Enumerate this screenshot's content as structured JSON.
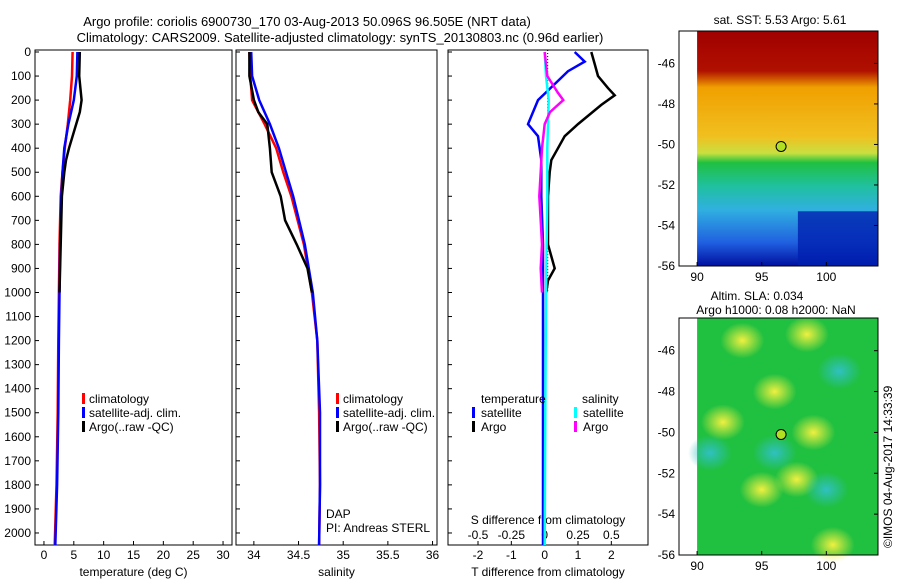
{
  "title_line1": "Argo profile: coriolis 6900730_170 03-Aug-2013 50.096S 96.505E (NRT data)",
  "title_line2": "Climatology: CARS2009. Satellite-adjusted climatology: synTS_20130803.nc (0.96d earlier)",
  "credit_line1": "DAP",
  "credit_line2": "PI: Andreas STERL",
  "copyright": "©IMOS 04-Aug-2017 14:33:39",
  "chart_data": [
    {
      "type": "line",
      "id": "temperature",
      "xlabel": "temperature (deg C)",
      "xlim": [
        -1.5,
        31.5
      ],
      "ylim": [
        0,
        2050
      ],
      "xticks": [
        0,
        5,
        10,
        15,
        20,
        25,
        30
      ],
      "yticks": [
        0,
        100,
        200,
        300,
        400,
        500,
        600,
        700,
        800,
        900,
        1000,
        1100,
        1200,
        1300,
        1400,
        1500,
        1600,
        1700,
        1800,
        1900,
        2000
      ],
      "legend": [
        "climatology",
        "satellite-adj. clim.",
        "Argo(..raw -QC)"
      ],
      "series": [
        {
          "name": "climatology",
          "color": "#ff0000",
          "depth": [
            0,
            100,
            200,
            300,
            400,
            500,
            600,
            800,
            1000,
            1200,
            1500,
            1800,
            2050
          ],
          "values": [
            4.8,
            4.7,
            4.4,
            4.0,
            3.5,
            3.1,
            2.8,
            2.6,
            2.5,
            2.4,
            2.3,
            2.1,
            1.8
          ]
        },
        {
          "name": "satellite-adj. clim.",
          "color": "#0000ff",
          "depth": [
            0,
            100,
            200,
            300,
            400,
            500,
            600,
            800,
            1000,
            1200,
            1500,
            1800,
            2050
          ],
          "values": [
            5.6,
            5.5,
            5.0,
            4.1,
            3.4,
            3.1,
            2.9,
            2.7,
            2.6,
            2.5,
            2.4,
            2.2,
            1.9
          ]
        },
        {
          "name": "Argo(..raw -QC)",
          "color": "#000000",
          "depth": [
            0,
            100,
            150,
            200,
            250,
            300,
            350,
            400,
            450,
            500,
            600,
            700,
            800,
            900,
            1000
          ],
          "values": [
            6.0,
            5.9,
            6.1,
            6.3,
            6.0,
            5.4,
            4.8,
            4.2,
            3.7,
            3.4,
            3.0,
            2.9,
            2.8,
            2.7,
            2.6
          ]
        }
      ]
    },
    {
      "type": "line",
      "id": "salinity",
      "xlabel": "salinity",
      "xlim": [
        33.8,
        36.05
      ],
      "ylim": [
        0,
        2050
      ],
      "xticks": [
        34,
        34.5,
        35,
        35.5,
        36
      ],
      "legend": [
        "climatology",
        "satellite-adj. clim.",
        "Argo(..raw -QC)"
      ],
      "series": [
        {
          "name": "climatology",
          "color": "#ff0000",
          "depth": [
            0,
            100,
            200,
            300,
            400,
            500,
            600,
            800,
            1000,
            1200,
            1500,
            1800,
            2050
          ],
          "values": [
            33.95,
            33.96,
            33.98,
            34.12,
            34.25,
            34.33,
            34.42,
            34.56,
            34.65,
            34.71,
            34.73,
            34.74,
            34.73
          ]
        },
        {
          "name": "satellite-adj. clim.",
          "color": "#0000ff",
          "depth": [
            0,
            100,
            200,
            300,
            400,
            500,
            600,
            800,
            1000,
            1200,
            1500,
            1800,
            2050
          ],
          "values": [
            33.97,
            33.98,
            34.06,
            34.18,
            34.28,
            34.36,
            34.44,
            34.57,
            34.66,
            34.71,
            34.74,
            34.74,
            34.73
          ]
        },
        {
          "name": "Argo(..raw -QC)",
          "color": "#000000",
          "depth": [
            0,
            100,
            200,
            250,
            300,
            400,
            500,
            600,
            700,
            800,
            900,
            1000
          ],
          "values": [
            33.95,
            33.95,
            34.0,
            34.05,
            34.15,
            34.18,
            34.2,
            34.3,
            34.35,
            34.48,
            34.6,
            34.65
          ]
        }
      ]
    },
    {
      "type": "line",
      "id": "difference",
      "xlabel": "T difference from climatology",
      "top_label": "S difference from climatology",
      "xlim": [
        -2.9,
        3.1
      ],
      "ylim": [
        0,
        2050
      ],
      "xticks": [
        -2,
        -1,
        0,
        1,
        2
      ],
      "top_ticks": [
        "-0.5",
        "-0.25",
        "0",
        "0.25",
        "0.5"
      ],
      "s_scale": 4,
      "legend_titles": [
        "temperature",
        "salinity"
      ],
      "legend": [
        "satellite",
        "Argo",
        "satellite",
        "Argo"
      ],
      "series": [
        {
          "name": "T satellite",
          "color": "#0000ff",
          "var": "T",
          "depth": [
            0,
            40,
            80,
            120,
            200,
            300,
            350,
            450,
            600,
            800,
            1000,
            1500,
            2050
          ],
          "values": [
            0.9,
            1.2,
            0.7,
            0.4,
            -0.2,
            -0.5,
            -0.2,
            -0.1,
            -0.1,
            -0.05,
            -0.05,
            -0.05,
            -0.05
          ]
        },
        {
          "name": "T Argo",
          "color": "#000000",
          "var": "T",
          "depth": [
            0,
            50,
            100,
            150,
            180,
            220,
            300,
            350,
            400,
            450,
            500,
            600,
            700,
            800,
            900,
            950,
            1000
          ],
          "values": [
            1.4,
            1.5,
            1.6,
            1.9,
            2.1,
            1.7,
            1.0,
            0.6,
            0.4,
            0.2,
            0.15,
            0.1,
            0.1,
            0.1,
            0.3,
            0.1,
            0.05
          ]
        },
        {
          "name": "S satellite",
          "color": "#00ffff",
          "var": "S",
          "depth": [
            0,
            100,
            200,
            400,
            600,
            1000,
            1500,
            2050
          ],
          "values": [
            0.0,
            0.01,
            0.03,
            0.02,
            0.02,
            0.01,
            0.005,
            0.0
          ]
        },
        {
          "name": "S Argo",
          "color": "#ff00ff",
          "var": "S",
          "depth": [
            0,
            100,
            170,
            200,
            250,
            300,
            400,
            500,
            600,
            700,
            800,
            900,
            1000
          ],
          "values": [
            0.0,
            0.02,
            0.1,
            0.14,
            0.04,
            0.0,
            -0.02,
            -0.03,
            -0.04,
            -0.03,
            -0.02,
            -0.03,
            -0.02
          ]
        }
      ]
    },
    {
      "type": "heatmap",
      "id": "sst_map",
      "title": "sat. SST: 5.53 Argo: 5.61",
      "xticks": [
        90,
        95,
        100
      ],
      "yticks": [
        -46,
        -48,
        -50,
        -52,
        -54,
        -56
      ],
      "xlim": [
        88.6,
        104
      ],
      "ylim": [
        -56,
        -44.4
      ],
      "marker": {
        "lon": 96.5,
        "lat": -50.1
      }
    },
    {
      "type": "heatmap",
      "id": "sla_map",
      "title_line1": "Altim. SLA: 0.034",
      "title_line2": "Argo h1000: 0.08 h2000: NaN",
      "xticks": [
        90,
        95,
        100
      ],
      "yticks": [
        -46,
        -48,
        -50,
        -52,
        -54,
        -56
      ],
      "xlim": [
        88.6,
        104
      ],
      "ylim": [
        -56,
        -44.4
      ],
      "marker": {
        "lon": 96.5,
        "lat": -50.1
      }
    }
  ]
}
